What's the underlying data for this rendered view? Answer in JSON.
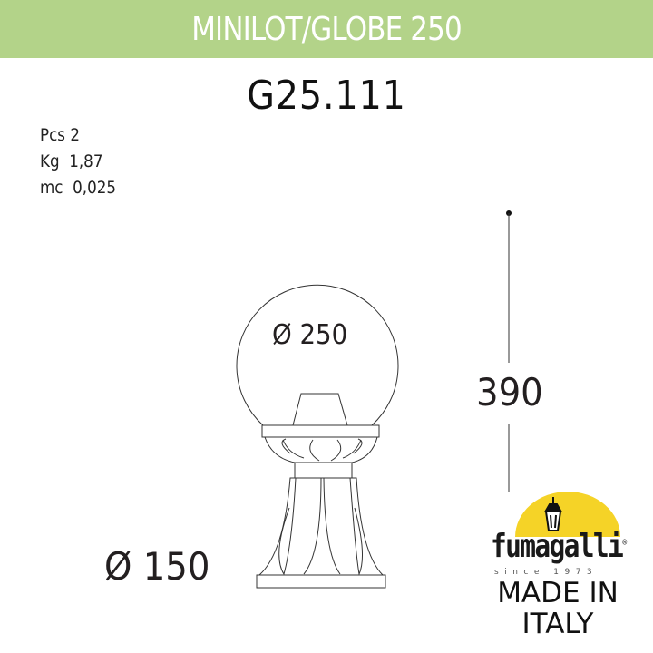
{
  "header": {
    "title": "MINILOT/GLOBE 250",
    "band_color": "#b3d389"
  },
  "product_code": "G25.111",
  "specs": [
    {
      "label": "Pcs",
      "value": "2"
    },
    {
      "label": "Kg",
      "value": "1,87"
    },
    {
      "label": "mc",
      "value": "0,025"
    }
  ],
  "dimensions": {
    "globe_diameter": "Ø 250",
    "base_diameter": "Ø 150",
    "height": "390"
  },
  "logo": {
    "brand": "fumagalli",
    "registered": "®",
    "since": "since 1973",
    "accent_color": "#f5d327",
    "icon": "lantern-icon"
  },
  "origin": {
    "line1": "MADE IN",
    "line2": "ITALY"
  }
}
